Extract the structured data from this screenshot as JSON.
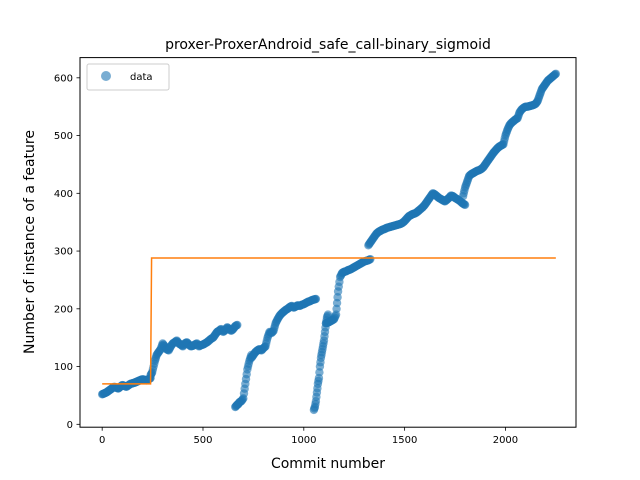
{
  "chart_data": {
    "type": "scatter",
    "title": "proxer-ProxerAndroid_safe_call-binary_sigmoid",
    "xlabel": "Commit number",
    "ylabel": "Number of instance of a feature",
    "xlim": [
      -110,
      2350
    ],
    "ylim": [
      -5,
      635
    ],
    "xticks": [
      0,
      500,
      1000,
      1500,
      2000
    ],
    "yticks": [
      0,
      100,
      200,
      300,
      400,
      500,
      600
    ],
    "grid": false,
    "legend": {
      "placement": "top-left",
      "entries": [
        "data"
      ]
    },
    "colors": {
      "data": "#1f77b4",
      "fit": "#ff7f0e"
    },
    "series": [
      {
        "name": "data",
        "kind": "scatter",
        "segments": [
          {
            "x": [
              0,
              20,
              40,
              60,
              80,
              100,
              120,
              140,
              160,
              180,
              200,
              220,
              240
            ],
            "y": [
              52,
              55,
              60,
              65,
              62,
              68,
              65,
              70,
              72,
              75,
              78,
              76,
              80
            ]
          },
          {
            "x": [
              240,
              248,
              255,
              262,
              270,
              280,
              290,
              300,
              310,
              320,
              330,
              340,
              350,
              360,
              370,
              380,
              390,
              400,
              410,
              420,
              430,
              440,
              450,
              460,
              470,
              480,
              490,
              500,
              510,
              520,
              530,
              540,
              550,
              560,
              570,
              580,
              590,
              600,
              610,
              620,
              630,
              640,
              650,
              660,
              670
            ],
            "y": [
              85,
              90,
              100,
              110,
              120,
              125,
              130,
              140,
              135,
              130,
              128,
              135,
              140,
              142,
              145,
              140,
              138,
              135,
              140,
              142,
              138,
              135,
              136,
              138,
              140,
              135,
              137,
              138,
              140,
              142,
              145,
              148,
              150,
              155,
              160,
              162,
              165,
              160,
              163,
              168,
              165,
              162,
              165,
              170,
              172
            ]
          },
          {
            "x": [
              660,
              665,
              670,
              675,
              680,
              690,
              700,
              710,
              720,
              730,
              740
            ],
            "y": [
              30,
              32,
              34,
              35,
              38,
              40,
              45,
              70,
              95,
              110,
              120
            ]
          },
          {
            "x": [
              740,
              750,
              760,
              770,
              780,
              790,
              800,
              810,
              820,
              830,
              840,
              850,
              860,
              870,
              880,
              890,
              900,
              910,
              920,
              930,
              940,
              950,
              960,
              970,
              980,
              990,
              1000,
              1010,
              1020,
              1030,
              1040,
              1050,
              1060
            ],
            "y": [
              115,
              120,
              125,
              128,
              130,
              128,
              132,
              135,
              150,
              160,
              158,
              162,
              175,
              182,
              188,
              192,
              195,
              198,
              200,
              203,
              205,
              202,
              204,
              206,
              205,
              207,
              208,
              210,
              212,
              213,
              215,
              216,
              217
            ]
          },
          {
            "x": [
              1050,
              1055,
              1060,
              1065,
              1070,
              1075,
              1080,
              1085,
              1090,
              1095,
              1100,
              1105,
              1110,
              1115,
              1120
            ],
            "y": [
              25,
              30,
              40,
              55,
              70,
              80,
              100,
              115,
              125,
              135,
              145,
              160,
              175,
              185,
              190
            ]
          },
          {
            "x": [
              1110,
              1120,
              1130,
              1140,
              1150,
              1160,
              1165,
              1170,
              1180,
              1190,
              1200,
              1210,
              1220,
              1230,
              1240,
              1250,
              1260,
              1270,
              1280,
              1290,
              1300,
              1310,
              1320,
              1330
            ],
            "y": [
              175,
              176,
              178,
              180,
              182,
              190,
              210,
              230,
              255,
              262,
              264,
              265,
              267,
              268,
              270,
              272,
              274,
              276,
              278,
              280,
              282,
              283,
              284,
              286
            ]
          },
          {
            "x": [
              1320,
              1330,
              1340,
              1350,
              1360,
              1370,
              1380,
              1390,
              1400,
              1410,
              1420,
              1430,
              1440,
              1450,
              1460,
              1470,
              1480,
              1490,
              1500,
              1510,
              1520,
              1530,
              1540,
              1550,
              1560,
              1570,
              1580,
              1590,
              1600,
              1610,
              1620,
              1630,
              1640,
              1650,
              1660,
              1670,
              1680,
              1690,
              1700,
              1710,
              1720,
              1730,
              1740,
              1750,
              1760,
              1770,
              1780,
              1790,
              1800
            ],
            "y": [
              310,
              315,
              320,
              325,
              330,
              333,
              335,
              337,
              338,
              340,
              341,
              342,
              343,
              344,
              345,
              346,
              347,
              349,
              352,
              356,
              360,
              362,
              364,
              365,
              367,
              370,
              373,
              376,
              380,
              385,
              390,
              395,
              400,
              398,
              395,
              392,
              390,
              388,
              386,
              389,
              392,
              396,
              395,
              392,
              390,
              388,
              385,
              382,
              380
            ]
          },
          {
            "x": [
              1790,
              1800,
              1810,
              1820,
              1830,
              1840,
              1850,
              1860,
              1870,
              1880,
              1890,
              1900,
              1910,
              1920,
              1930,
              1940,
              1950,
              1960,
              1970,
              1980,
              1990,
              2000,
              2010,
              2020,
              2030,
              2040,
              2050,
              2060,
              2070,
              2080,
              2090,
              2100,
              2110,
              2120,
              2130,
              2140,
              2150,
              2160,
              2170,
              2180,
              2190,
              2200,
              2210,
              2220,
              2230,
              2240,
              2250
            ],
            "y": [
              395,
              410,
              420,
              430,
              433,
              435,
              437,
              439,
              440,
              442,
              445,
              450,
              455,
              460,
              465,
              470,
              474,
              478,
              481,
              483,
              485,
              500,
              510,
              518,
              522,
              525,
              528,
              530,
              540,
              545,
              548,
              550,
              550,
              551,
              552,
              553,
              555,
              560,
              570,
              580,
              585,
              590,
              595,
              598,
              601,
              604,
              607
            ]
          }
        ]
      },
      {
        "name": "",
        "kind": "line",
        "x": [
          0,
          240,
          240,
          245,
          2250
        ],
        "y": [
          70,
          70,
          70,
          288,
          288
        ]
      }
    ]
  }
}
